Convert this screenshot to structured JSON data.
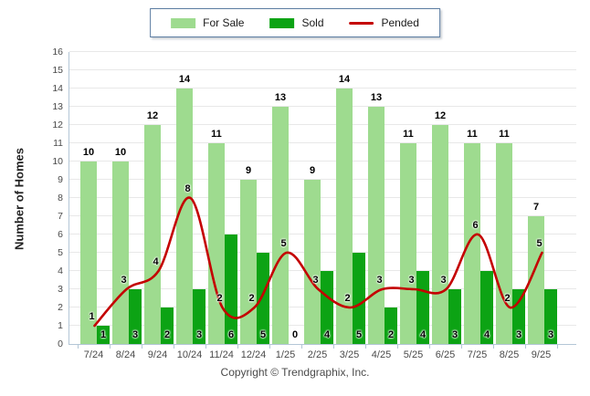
{
  "legend": {
    "for_sale_label": "For Sale",
    "sold_label": "Sold",
    "pended_label": "Pended"
  },
  "footer": {
    "copyright": "Copyright © Trendgraphix, Inc."
  },
  "colors": {
    "for_sale": "#9edb8f",
    "sold": "#0ca314",
    "pended": "#c40000",
    "gridline": "#e8e8e8",
    "axis": "#b3c6d6",
    "tick_text": "#4a4a4a",
    "data_label": "#000000"
  },
  "chart_data": {
    "type": "bar",
    "title": "",
    "xlabel": "",
    "ylabel": "Number of Homes",
    "ylim": [
      0,
      16
    ],
    "ytick_step": 1,
    "grid": "horizontal",
    "legend_position": "top-center",
    "categories": [
      "7/24",
      "8/24",
      "9/24",
      "10/24",
      "11/24",
      "12/24",
      "1/25",
      "2/25",
      "3/25",
      "4/25",
      "5/25",
      "6/25",
      "7/25",
      "8/25",
      "9/25"
    ],
    "series": [
      {
        "name": "For Sale",
        "type": "bar",
        "color": "#9edb8f",
        "values": [
          10,
          10,
          12,
          14,
          11,
          9,
          13,
          9,
          14,
          13,
          11,
          12,
          11,
          11,
          7
        ]
      },
      {
        "name": "Sold",
        "type": "bar",
        "color": "#0ca314",
        "values": [
          1,
          3,
          2,
          3,
          6,
          5,
          0,
          4,
          5,
          2,
          4,
          3,
          4,
          3,
          3
        ]
      },
      {
        "name": "Pended",
        "type": "line",
        "color": "#c40000",
        "values": [
          1,
          3,
          4,
          8,
          2,
          2,
          5,
          3,
          2,
          3,
          3,
          3,
          6,
          2,
          5
        ]
      }
    ]
  }
}
